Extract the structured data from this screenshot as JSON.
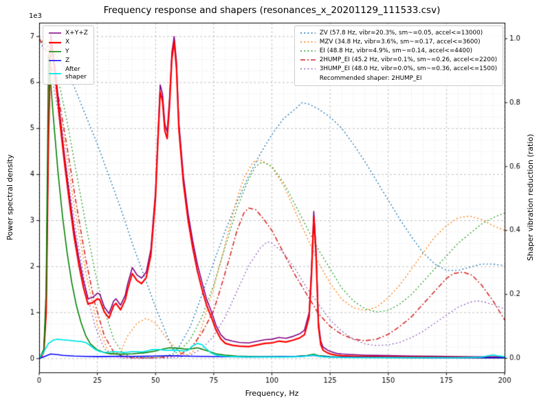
{
  "chart_data": {
    "type": "line",
    "title": "Frequency response and shapers (resonances_x_20201129_111533.csv)",
    "xlabel": "Frequency, Hz",
    "ylabel_left": "Power spectral density",
    "ylabel_right": "Shaper vibration reduction (ratio)",
    "offset_label": "1e3",
    "xlim": [
      0,
      200
    ],
    "ylim_left": [
      -300,
      7300
    ],
    "ylim_right": [
      -0.044,
      1.05
    ],
    "x_ticks": [
      0,
      25,
      50,
      75,
      100,
      125,
      150,
      175,
      200
    ],
    "x_tick_labels": [
      "0",
      "25",
      "50",
      "75",
      "100",
      "125",
      "150",
      "175",
      "200"
    ],
    "x_minor_step": 5,
    "y_ticks_left": [
      0,
      1000,
      2000,
      3000,
      4000,
      5000,
      6000,
      7000
    ],
    "y_tick_labels_left": [
      "0",
      "1",
      "2",
      "3",
      "4",
      "5",
      "6",
      "7"
    ],
    "y_minor_step_left": 250,
    "y_ticks_right": [
      0.0,
      0.2,
      0.4,
      0.6,
      0.8,
      1.0
    ],
    "y_tick_labels_right": [
      "0.0",
      "0.2",
      "0.4",
      "0.6",
      "0.8",
      "1.0"
    ],
    "grid_major_color": "#b0b0b0",
    "grid_minor_color": "#dcdcdc",
    "recommended": "Recommended shaper: 2HUMP_EI",
    "psd_series": [
      {
        "name": "X+Y+Z",
        "color": "#800080",
        "width": 1.6,
        "dash": [],
        "x": [
          0,
          1,
          2,
          3,
          4,
          5,
          7,
          9,
          11,
          13,
          15,
          17,
          19,
          21,
          23,
          25,
          26,
          28,
          30,
          32,
          33,
          35,
          37,
          38,
          40,
          42,
          44,
          46,
          48,
          50,
          51,
          52,
          53,
          54,
          55,
          56,
          57,
          58,
          59,
          60,
          62,
          64,
          66,
          68,
          70,
          72,
          74,
          76,
          78,
          80,
          83,
          86,
          90,
          94,
          97,
          100,
          103,
          106,
          109,
          112,
          114,
          116,
          117,
          118,
          119,
          120,
          121,
          122,
          124,
          126,
          128,
          130,
          135,
          140,
          150,
          160,
          170,
          180,
          190,
          200
        ],
        "y": [
          0,
          60,
          200,
          1100,
          5000,
          7050,
          6250,
          5250,
          4350,
          3550,
          2800,
          2200,
          1700,
          1300,
          1330,
          1420,
          1400,
          1120,
          980,
          1250,
          1300,
          1160,
          1380,
          1620,
          1980,
          1820,
          1750,
          1880,
          2380,
          3650,
          4850,
          5950,
          5750,
          5100,
          4930,
          5650,
          6650,
          7000,
          6450,
          5150,
          3950,
          3150,
          2550,
          2050,
          1650,
          1280,
          1020,
          720,
          520,
          420,
          380,
          350,
          340,
          380,
          410,
          420,
          460,
          440,
          480,
          540,
          620,
          1000,
          1950,
          3200,
          2350,
          800,
          380,
          250,
          180,
          140,
          110,
          100,
          85,
          75,
          65,
          55,
          50,
          45,
          40,
          40
        ]
      },
      {
        "name": "X",
        "color": "#ff0000",
        "width": 2.2,
        "dash": [],
        "x": [
          0,
          1,
          2,
          3,
          4,
          5,
          7,
          9,
          11,
          13,
          15,
          17,
          19,
          21,
          23,
          25,
          26,
          28,
          30,
          32,
          33,
          35,
          37,
          38,
          40,
          42,
          44,
          46,
          48,
          50,
          51,
          52,
          53,
          54,
          55,
          56,
          57,
          58,
          59,
          60,
          62,
          64,
          66,
          68,
          70,
          72,
          74,
          76,
          78,
          80,
          83,
          86,
          90,
          94,
          97,
          100,
          103,
          106,
          109,
          112,
          114,
          116,
          117,
          118,
          119,
          120,
          121,
          122,
          124,
          126,
          128,
          130,
          135,
          140,
          150,
          160,
          170,
          180,
          190,
          200
        ],
        "y": [
          0,
          40,
          150,
          1000,
          4800,
          6950,
          6100,
          5100,
          4200,
          3400,
          2650,
          2050,
          1550,
          1180,
          1220,
          1300,
          1280,
          1010,
          880,
          1150,
          1200,
          1060,
          1280,
          1500,
          1850,
          1700,
          1630,
          1760,
          2250,
          3500,
          4700,
          5800,
          5600,
          4950,
          4780,
          5500,
          6500,
          6900,
          6300,
          5000,
          3800,
          3000,
          2400,
          1900,
          1500,
          1150,
          900,
          620,
          430,
          330,
          290,
          270,
          260,
          300,
          330,
          340,
          380,
          360,
          400,
          450,
          520,
          900,
          1800,
          3080,
          2200,
          700,
          300,
          180,
          120,
          90,
          70,
          60,
          50,
          45,
          40,
          35,
          30,
          30,
          25,
          25
        ]
      },
      {
        "name": "Y",
        "color": "#008000",
        "width": 1.6,
        "dash": [],
        "x": [
          0,
          2,
          3,
          4,
          6,
          8,
          10,
          12,
          14,
          16,
          18,
          20,
          22,
          25,
          28,
          30,
          35,
          40,
          45,
          50,
          53,
          56,
          60,
          63,
          66,
          68,
          70,
          73,
          76,
          80,
          85,
          90,
          95,
          100,
          105,
          110,
          115,
          118,
          120,
          125,
          130,
          140,
          150,
          160,
          170,
          180,
          190,
          200
        ],
        "y": [
          0,
          200,
          1500,
          6600,
          5300,
          4100,
          3100,
          2300,
          1650,
          1150,
          780,
          500,
          320,
          190,
          130,
          110,
          95,
          105,
          125,
          165,
          205,
          235,
          225,
          205,
          215,
          235,
          205,
          155,
          105,
          75,
          55,
          48,
          42,
          42,
          42,
          48,
          65,
          95,
          65,
          42,
          32,
          26,
          22,
          20,
          20,
          20,
          20,
          20
        ]
      },
      {
        "name": "Z",
        "color": "#0000ff",
        "width": 1.6,
        "dash": [],
        "x": [
          0,
          3,
          5,
          8,
          10,
          15,
          20,
          25,
          30,
          35,
          40,
          45,
          50,
          55,
          60,
          65,
          70,
          80,
          90,
          100,
          110,
          115,
          118,
          120,
          125,
          130,
          140,
          150,
          160,
          170,
          180,
          190,
          200
        ],
        "y": [
          0,
          60,
          100,
          85,
          70,
          55,
          48,
          42,
          46,
          52,
          48,
          50,
          55,
          62,
          57,
          52,
          47,
          40,
          36,
          40,
          46,
          56,
          72,
          52,
          36,
          30,
          26,
          25,
          22,
          20,
          20,
          20,
          20
        ]
      },
      {
        "name": "After\nshaper",
        "color": "#00e5e5",
        "width": 1.8,
        "dash": [],
        "x": [
          0,
          2,
          4,
          6,
          8,
          10,
          12,
          14,
          16,
          18,
          20,
          22,
          24,
          26,
          28,
          30,
          32,
          34,
          36,
          38,
          40,
          42,
          44,
          46,
          48,
          50,
          52,
          54,
          56,
          58,
          60,
          62,
          64,
          66,
          68,
          70,
          72,
          74,
          76,
          78,
          80,
          85,
          90,
          95,
          100,
          105,
          110,
          113,
          116,
          118,
          120,
          122,
          125,
          130,
          140,
          150,
          160,
          170,
          180,
          185,
          190,
          193,
          195,
          197,
          200
        ],
        "y": [
          0,
          150,
          330,
          400,
          420,
          410,
          400,
          390,
          380,
          370,
          350,
          280,
          200,
          155,
          135,
          140,
          150,
          142,
          132,
          140,
          150,
          150,
          142,
          160,
          190,
          200,
          196,
          182,
          180,
          186,
          176,
          166,
          180,
          280,
          330,
          300,
          200,
          120,
          80,
          62,
          50,
          40,
          36,
          35,
          35,
          36,
          40,
          46,
          60,
          80,
          55,
          40,
          30,
          25,
          20,
          20,
          20,
          20,
          20,
          25,
          30,
          60,
          80,
          60,
          40
        ]
      }
    ],
    "shaper_series": [
      {
        "name": "ZV (57.8 Hz, vibr=20.3%, sm~=0.05, accel<=13000)",
        "color": "#1f77b4",
        "width": 1.4,
        "dash": [
          2,
          3.2
        ],
        "x": [
          0,
          5,
          10,
          15,
          20,
          25,
          30,
          35,
          40,
          45,
          50,
          55,
          58,
          60,
          65,
          70,
          75,
          80,
          85,
          90,
          95,
          100,
          105,
          110,
          113,
          116,
          120,
          125,
          130,
          135,
          140,
          145,
          150,
          155,
          160,
          165,
          170,
          175,
          180,
          185,
          190,
          195,
          200
        ],
        "y": [
          1.0,
          0.97,
          0.92,
          0.85,
          0.76,
          0.67,
          0.57,
          0.47,
          0.36,
          0.26,
          0.16,
          0.07,
          0.02,
          0.035,
          0.1,
          0.2,
          0.3,
          0.4,
          0.49,
          0.57,
          0.64,
          0.7,
          0.75,
          0.78,
          0.8,
          0.795,
          0.78,
          0.755,
          0.72,
          0.67,
          0.615,
          0.555,
          0.495,
          0.435,
          0.38,
          0.33,
          0.295,
          0.275,
          0.275,
          0.285,
          0.295,
          0.295,
          0.29
        ]
      },
      {
        "name": "MZV (34.8 Hz, vibr=3.6%, sm~=0.17, accel<=3600)",
        "color": "#ff7f0e",
        "width": 1.4,
        "dash": [
          2,
          3.2
        ],
        "x": [
          0,
          3,
          5,
          10,
          15,
          20,
          25,
          30,
          35,
          38,
          42,
          46,
          50,
          55,
          60,
          63,
          66,
          70,
          75,
          80,
          85,
          88,
          92,
          95,
          100,
          105,
          110,
          115,
          120,
          125,
          130,
          135,
          140,
          145,
          150,
          155,
          160,
          165,
          170,
          175,
          180,
          185,
          190,
          195,
          200
        ],
        "y": [
          1.0,
          0.985,
          0.93,
          0.72,
          0.48,
          0.27,
          0.105,
          0.015,
          0.02,
          0.07,
          0.11,
          0.125,
          0.11,
          0.06,
          0.02,
          0.01,
          0.02,
          0.1,
          0.22,
          0.36,
          0.5,
          0.565,
          0.615,
          0.62,
          0.6,
          0.54,
          0.46,
          0.38,
          0.3,
          0.235,
          0.185,
          0.158,
          0.15,
          0.16,
          0.19,
          0.23,
          0.28,
          0.33,
          0.38,
          0.415,
          0.44,
          0.445,
          0.435,
          0.415,
          0.4
        ]
      },
      {
        "name": "EI (48.8 Hz, vibr=4.9%, sm~=0.14, accel<=4400)",
        "color": "#2ca02c",
        "width": 1.4,
        "dash": [
          2,
          3.2
        ],
        "x": [
          0,
          4,
          8,
          12,
          16,
          20,
          24,
          28,
          32,
          36,
          40,
          45,
          50,
          55,
          60,
          65,
          70,
          75,
          80,
          85,
          90,
          93,
          96,
          100,
          105,
          110,
          115,
          120,
          125,
          130,
          135,
          140,
          145,
          150,
          155,
          160,
          165,
          170,
          175,
          180,
          185,
          190,
          195,
          200
        ],
        "y": [
          1.0,
          0.97,
          0.88,
          0.74,
          0.58,
          0.42,
          0.27,
          0.15,
          0.06,
          0.015,
          0.004,
          0.002,
          0.003,
          0.008,
          0.02,
          0.06,
          0.13,
          0.23,
          0.35,
          0.47,
          0.56,
          0.6,
          0.615,
          0.6,
          0.55,
          0.48,
          0.41,
          0.34,
          0.28,
          0.22,
          0.18,
          0.155,
          0.145,
          0.15,
          0.17,
          0.2,
          0.24,
          0.28,
          0.32,
          0.36,
          0.39,
          0.42,
          0.44,
          0.455
        ]
      },
      {
        "name": "2HUMP_EI (45.2 Hz, vibr=0.1%, sm~=0.26, accel<=2200)",
        "color": "#d62728",
        "width": 1.6,
        "dash": [
          7,
          3,
          2,
          3
        ],
        "x": [
          0,
          4,
          8,
          12,
          16,
          20,
          24,
          28,
          32,
          36,
          40,
          45,
          50,
          55,
          60,
          65,
          70,
          75,
          78,
          82,
          85,
          88,
          90,
          93,
          96,
          100,
          105,
          110,
          115,
          120,
          125,
          130,
          135,
          140,
          145,
          150,
          155,
          160,
          165,
          170,
          175,
          178,
          182,
          186,
          190,
          195,
          200
        ],
        "y": [
          1.0,
          0.95,
          0.83,
          0.66,
          0.48,
          0.31,
          0.17,
          0.07,
          0.02,
          0.005,
          0.002,
          0.001,
          0.002,
          0.004,
          0.01,
          0.03,
          0.08,
          0.15,
          0.22,
          0.32,
          0.4,
          0.455,
          0.47,
          0.465,
          0.44,
          0.4,
          0.33,
          0.26,
          0.2,
          0.14,
          0.1,
          0.075,
          0.06,
          0.055,
          0.06,
          0.075,
          0.1,
          0.13,
          0.17,
          0.21,
          0.25,
          0.265,
          0.27,
          0.26,
          0.23,
          0.18,
          0.12
        ]
      },
      {
        "name": "3HUMP_EI (48.0 Hz, vibr=0.0%, sm~=0.36, accel<=1500)",
        "color": "#9467bd",
        "width": 1.4,
        "dash": [
          2,
          3.2
        ],
        "x": [
          0,
          4,
          8,
          12,
          16,
          20,
          24,
          28,
          32,
          36,
          40,
          48,
          56,
          60,
          65,
          70,
          75,
          80,
          85,
          90,
          95,
          98,
          100,
          105,
          110,
          115,
          120,
          125,
          130,
          135,
          140,
          145,
          150,
          155,
          160,
          165,
          170,
          175,
          180,
          185,
          188,
          192,
          196,
          200
        ],
        "y": [
          1.0,
          0.93,
          0.78,
          0.58,
          0.39,
          0.22,
          0.1,
          0.03,
          0.006,
          0.001,
          0.0,
          0.0,
          0.001,
          0.003,
          0.01,
          0.03,
          0.07,
          0.13,
          0.21,
          0.29,
          0.345,
          0.365,
          0.36,
          0.33,
          0.28,
          0.22,
          0.17,
          0.12,
          0.085,
          0.06,
          0.045,
          0.04,
          0.042,
          0.05,
          0.065,
          0.085,
          0.11,
          0.135,
          0.16,
          0.175,
          0.18,
          0.175,
          0.165,
          0.155
        ]
      }
    ]
  }
}
